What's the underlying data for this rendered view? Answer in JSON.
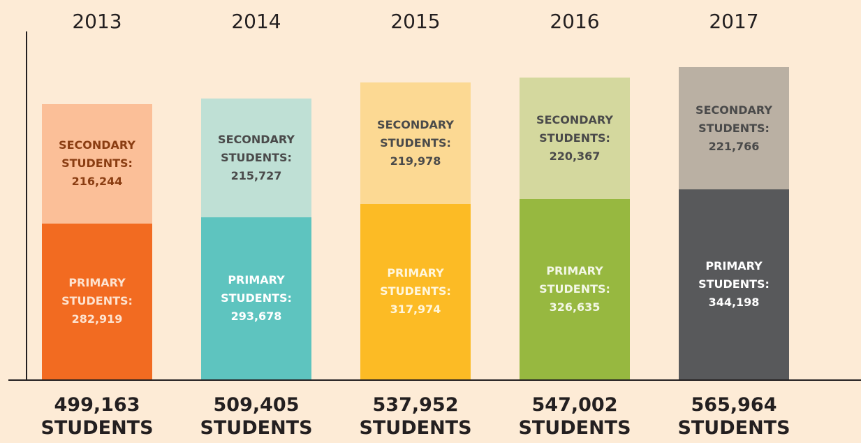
{
  "chart_data": {
    "type": "bar",
    "stacked": true,
    "categories": [
      "2013",
      "2014",
      "2015",
      "2016",
      "2017"
    ],
    "series": [
      {
        "name": "PRIMARY STUDENTS:",
        "colors": [
          "#f26b21",
          "#5ec4bf",
          "#fcbb25",
          "#97b840",
          "#58595b"
        ],
        "values": [
          282919,
          293678,
          317974,
          326635,
          344198
        ],
        "value_labels": [
          "282,919",
          "293,678",
          "317,974",
          "326,635",
          "344,198"
        ]
      },
      {
        "name": "SECONDARY STUDENTS:",
        "colors": [
          "#fbbf98",
          "#bfe0d5",
          "#fcd993",
          "#d4d89e",
          "#bab0a3"
        ],
        "values": [
          216244,
          215727,
          219978,
          220367,
          221766
        ],
        "value_labels": [
          "216,244",
          "215,727",
          "219,978",
          "220,367",
          "221,766"
        ]
      }
    ],
    "totals": [
      499163,
      509405,
      537952,
      547002,
      565964
    ],
    "total_labels": [
      "499,163",
      "509,405",
      "537,952",
      "547,002",
      "565,964"
    ],
    "total_unit": "STUDENTS"
  }
}
